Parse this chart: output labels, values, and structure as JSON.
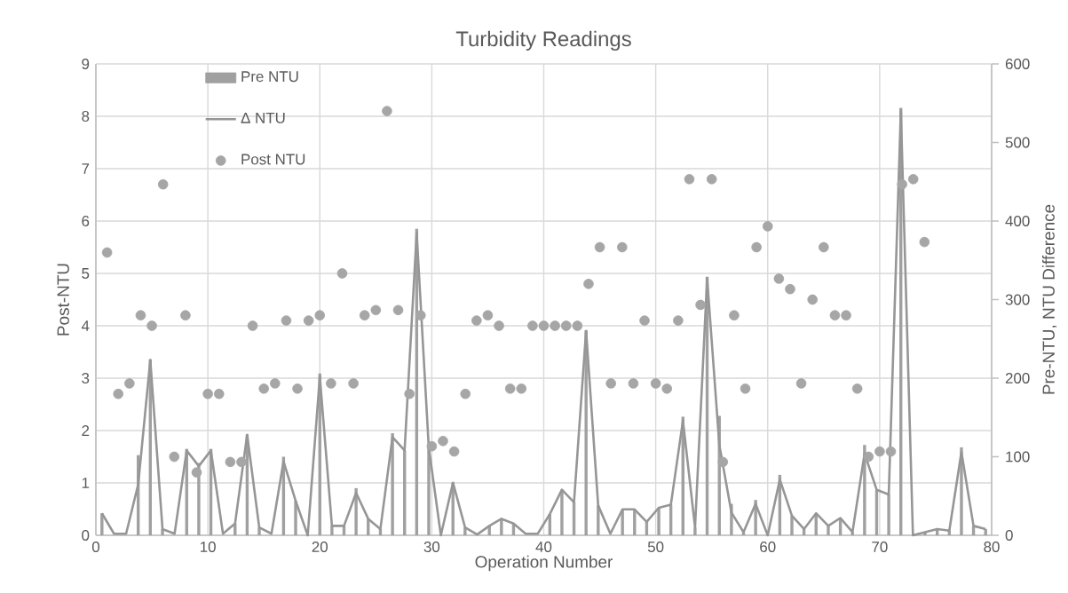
{
  "chart_data": {
    "type": "bar",
    "title": "Turbidity Readings",
    "xlabel": "Operation Number",
    "ylabel": "Post-NTU",
    "y2label": "Pre-NTU, NTU Difference",
    "xlim": [
      0,
      80
    ],
    "xticks": [
      0,
      10,
      20,
      30,
      40,
      50,
      60,
      70,
      80
    ],
    "ylim": [
      0,
      9
    ],
    "yticks": [
      0,
      1,
      2,
      3,
      4,
      5,
      6,
      7,
      8,
      9
    ],
    "y2lim": [
      0,
      600
    ],
    "y2ticks": [
      0,
      100,
      200,
      300,
      400,
      500,
      600
    ],
    "grid": true,
    "legend": "top left",
    "series": [
      {
        "name": "Pre NTU",
        "axis": "y2",
        "color": "#a0a0a0",
        "x": [
          0.54,
          1.62,
          2.7,
          3.78,
          4.86,
          5.95,
          7.03,
          8.11,
          9.19,
          10.27,
          11.35,
          12.43,
          13.51,
          14.59,
          15.68,
          16.76,
          17.84,
          18.92,
          20.0,
          21.08,
          22.16,
          23.24,
          24.32,
          25.41,
          26.49,
          27.57,
          28.65,
          29.73,
          30.81,
          31.89,
          32.97,
          34.05,
          35.14,
          36.22,
          37.3,
          38.38,
          39.46,
          40.54,
          41.62,
          42.7,
          43.78,
          44.86,
          45.95,
          47.03,
          48.11,
          49.19,
          50.27,
          51.35,
          52.43,
          53.51,
          54.59,
          55.68,
          56.76,
          57.84,
          58.92,
          60.0,
          61.08,
          62.16,
          63.24,
          64.32,
          65.41,
          66.49,
          67.57,
          68.65,
          69.73,
          70.81,
          71.89,
          72.97,
          74.05,
          75.14,
          76.22,
          77.3,
          78.38,
          79.46
        ],
        "values": [
          28,
          0,
          0,
          102,
          224,
          8,
          0,
          110,
          92,
          110,
          0,
          15,
          128,
          10,
          0,
          100,
          44,
          0,
          206,
          12,
          12,
          60,
          21,
          8,
          130,
          108,
          390,
          115,
          0,
          67,
          10,
          1,
          12,
          21,
          15,
          null,
          null,
          27,
          58,
          42,
          261,
          38,
          null,
          33,
          33,
          17,
          35,
          39,
          151,
          10,
          329,
          152,
          40,
          4,
          45,
          0,
          77,
          25,
          8,
          28,
          12,
          22,
          4,
          115,
          58,
          52,
          544,
          0,
          4,
          8,
          6,
          112,
          12,
          8
        ]
      },
      {
        "name": "Δ NTU",
        "type": "line",
        "marker": "none",
        "axis": "y2",
        "color": "#969696",
        "x": [
          0.54,
          1.62,
          2.7,
          3.78,
          4.86,
          5.95,
          7.03,
          8.11,
          9.19,
          10.27,
          11.35,
          12.43,
          13.51,
          14.59,
          15.68,
          16.76,
          17.84,
          18.92,
          20.0,
          21.08,
          22.16,
          23.24,
          24.32,
          25.41,
          26.49,
          27.57,
          28.65,
          29.73,
          30.81,
          31.89,
          32.97,
          34.05,
          35.14,
          36.22,
          37.3,
          38.38,
          39.46,
          40.54,
          41.62,
          42.7,
          43.78,
          44.86,
          45.95,
          47.03,
          48.11,
          49.19,
          50.27,
          51.35,
          52.43,
          53.51,
          54.59,
          55.68,
          56.76,
          57.84,
          58.92,
          60.0,
          61.08,
          62.16,
          63.24,
          64.32,
          65.41,
          66.49,
          67.57,
          68.65,
          69.73,
          70.81,
          71.89,
          72.97,
          74.05,
          75.14,
          76.22,
          77.3,
          78.38,
          79.46
        ],
        "values": [
          28,
          2,
          2,
          65,
          223,
          8,
          2,
          108,
          88,
          108,
          2,
          15,
          128,
          10,
          2,
          94,
          44,
          0,
          202,
          12,
          12,
          54,
          21,
          8,
          125,
          108,
          385,
          112,
          0,
          67,
          10,
          1,
          12,
          21,
          15,
          2,
          2,
          27,
          58,
          42,
          260,
          38,
          2,
          33,
          33,
          17,
          35,
          39,
          146,
          10,
          327,
          115,
          29,
          4,
          40,
          0,
          71,
          25,
          8,
          28,
          12,
          22,
          4,
          104,
          58,
          52,
          540,
          0,
          4,
          8,
          6,
          106,
          12,
          8
        ]
      },
      {
        "name": "Post NTU",
        "type": "scatter",
        "color": "#a6a6a6",
        "x": [
          1,
          2,
          3,
          4,
          5,
          6,
          7,
          8,
          9,
          10,
          11,
          12,
          13,
          14,
          15,
          16,
          17,
          18,
          19,
          20,
          21,
          22,
          23,
          24,
          25,
          26,
          27,
          28,
          29,
          30,
          31,
          32,
          33,
          34,
          35,
          36,
          37,
          38,
          39,
          40,
          41,
          42,
          43,
          44,
          45,
          46,
          47,
          48,
          49,
          50,
          51,
          52,
          53,
          54,
          55,
          56,
          57,
          58,
          59,
          60,
          61,
          62,
          63,
          64,
          65,
          66,
          67,
          68,
          69,
          70,
          71,
          72,
          73,
          74
        ],
        "values": [
          5.4,
          2.7,
          2.9,
          4.2,
          4.0,
          6.7,
          1.5,
          4.2,
          1.2,
          2.7,
          2.7,
          1.4,
          1.4,
          4.0,
          2.8,
          2.9,
          4.1,
          2.8,
          4.1,
          4.2,
          2.9,
          5.0,
          2.9,
          4.2,
          4.3,
          8.1,
          4.3,
          2.7,
          4.2,
          1.7,
          1.8,
          1.6,
          2.7,
          4.1,
          4.2,
          4.0,
          2.8,
          2.8,
          4.0,
          4.0,
          4.0,
          4.0,
          4.0,
          4.8,
          5.5,
          2.9,
          5.5,
          2.9,
          4.1,
          2.9,
          2.8,
          4.1,
          6.8,
          4.4,
          6.8,
          1.4,
          4.2,
          2.8,
          5.5,
          5.9,
          4.9,
          4.7,
          2.9,
          4.5,
          5.5,
          4.2,
          4.2,
          2.8,
          1.5,
          1.6,
          1.6,
          6.7,
          6.8,
          5.6
        ]
      }
    ]
  }
}
